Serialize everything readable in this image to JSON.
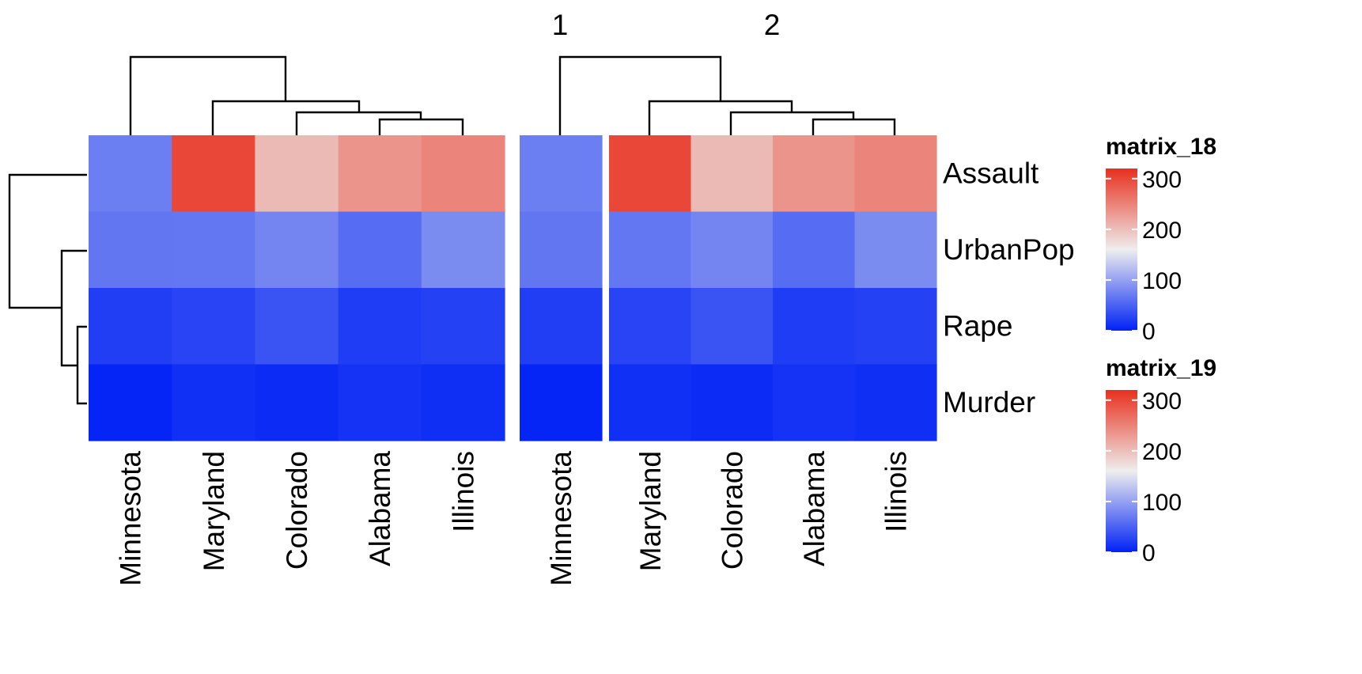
{
  "chart_data": {
    "type": "heatmap",
    "title": "",
    "column_split_labels": [
      "1",
      "2"
    ],
    "rows": [
      "Assault",
      "UrbanPop",
      "Rape",
      "Murder"
    ],
    "heatmaps": [
      {
        "name": "matrix_18",
        "columns": [
          "Minnesota",
          "Maryland",
          "Colorado",
          "Alabama",
          "Illinois"
        ],
        "values": [
          [
            72,
            300,
            204,
            236,
            249
          ],
          [
            66,
            67,
            78,
            58,
            83
          ],
          [
            22,
            27,
            39,
            21,
            24
          ],
          [
            2.6,
            11.3,
            7.9,
            13.2,
            10.4
          ]
        ]
      },
      {
        "name": "matrix_19",
        "columns": [
          "Minnesota",
          "Maryland",
          "Colorado",
          "Alabama",
          "Illinois"
        ],
        "values": [
          [
            72,
            300,
            204,
            236,
            249
          ],
          [
            66,
            67,
            78,
            58,
            83
          ],
          [
            22,
            27,
            39,
            21,
            24
          ],
          [
            2.6,
            11.3,
            7.9,
            13.2,
            10.4
          ]
        ]
      }
    ],
    "legends": [
      {
        "title": "matrix_18",
        "ticks": [
          "300",
          "200",
          "100",
          "0"
        ],
        "range": [
          0,
          320
        ]
      },
      {
        "title": "matrix_19",
        "ticks": [
          "300",
          "200",
          "100",
          "0"
        ],
        "range": [
          0,
          320
        ]
      }
    ],
    "color_scale": {
      "low": "#0022f5",
      "mid": "#eeeeee",
      "high": "#e8301e",
      "domain": [
        0,
        160,
        320
      ]
    }
  }
}
